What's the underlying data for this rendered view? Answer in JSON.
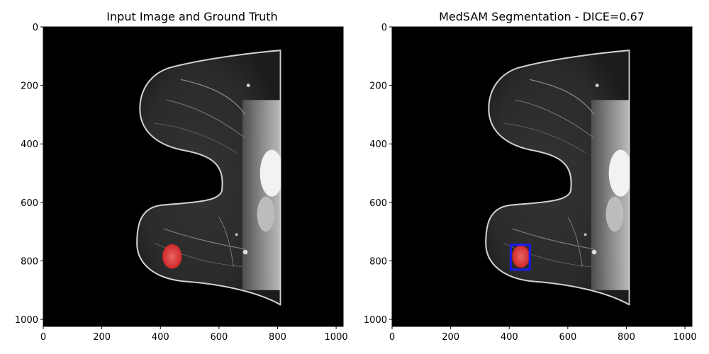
{
  "figure": {
    "panels": [
      {
        "title": "Input Image and Ground Truth",
        "x_ticks": [
          "0",
          "200",
          "400",
          "600",
          "800",
          "1000"
        ],
        "y_ticks": [
          "0",
          "200",
          "400",
          "600",
          "800",
          "1000"
        ],
        "overlays": {
          "mask": true,
          "box": false
        }
      },
      {
        "title": "MedSAM Segmentation - DICE=0.67",
        "x_ticks": [
          "0",
          "200",
          "400",
          "600",
          "800",
          "1000"
        ],
        "y_ticks": [
          "0",
          "200",
          "400",
          "600",
          "800",
          "1000"
        ],
        "overlays": {
          "mask": true,
          "box": true
        }
      }
    ],
    "image_extent": [
      0,
      1024
    ],
    "colors": {
      "background": "#000000",
      "tissue": "#3a3a3a",
      "mask": "#ff3b3b",
      "box": "#1a1aff"
    }
  }
}
